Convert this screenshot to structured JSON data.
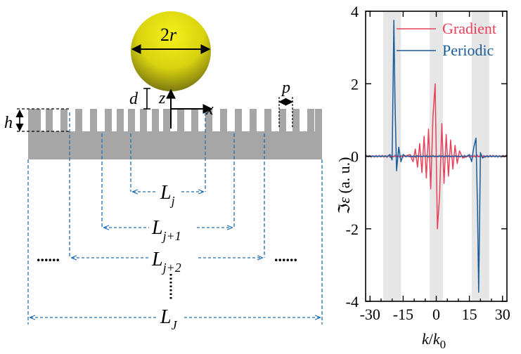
{
  "schematic": {
    "sphere_label_num": "2",
    "sphere_label_var": "r",
    "label_d": "d",
    "label_z": "z",
    "label_x": "x",
    "label_p": "p",
    "label_h": "h",
    "label_Lj": "L",
    "sub_j": "j",
    "sub_j1": "j+1",
    "sub_j2": "j+2",
    "sub_J": "J",
    "ellipsis": "......"
  },
  "colors": {
    "gradient": "#e8415a",
    "periodic": "#1a5c9a",
    "dashed": "#1f6fb4",
    "surface": "#a6a6a6",
    "sphere_top": "#f2ee12",
    "sphere_bottom": "#6e6a10",
    "shade": "#e6e6e6"
  },
  "chart_data": {
    "type": "line",
    "title": "",
    "xlabel_num": "k",
    "xlabel_den": "k",
    "xlabel_sub": "0",
    "ylabel_prefix": "ℑ",
    "ylabel_var": "ε",
    "ylabel_unit": " (a. u.)",
    "xlim": [
      -32,
      32
    ],
    "ylim": [
      -4,
      4
    ],
    "xticks": [
      -30,
      -15,
      0,
      15,
      30
    ],
    "xtick_labels": [
      "-30",
      "-15",
      "0",
      "15",
      "30"
    ],
    "yticks": [
      -4,
      -2,
      0,
      2,
      4
    ],
    "ytick_labels": [
      "-4",
      "-2",
      "0",
      "2",
      "4"
    ],
    "shaded_bands": [
      [
        -24,
        -16
      ],
      [
        -3,
        3
      ],
      [
        16,
        24
      ]
    ],
    "legend_position": "top-right",
    "series": [
      {
        "name": "Gradient",
        "description": "oscillating about 0 around k=0, growing envelope, max 2 near k=-0.5, min -2 near k=0.5",
        "x": [
          -32,
          -14,
          -12,
          -10.5,
          -9.5,
          -8.5,
          -7.5,
          -6.5,
          -5.5,
          -4.5,
          -3.5,
          -2.5,
          -1.5,
          -0.5,
          0.5,
          1.5,
          2.5,
          3.5,
          4.5,
          5.5,
          6.5,
          7.5,
          8.5,
          9.5,
          10.5,
          12,
          14,
          32
        ],
        "y": [
          0,
          0,
          0.05,
          -0.15,
          0.2,
          -0.3,
          0.35,
          -0.45,
          0.55,
          -0.6,
          0.75,
          -0.9,
          1.1,
          2.0,
          -2.0,
          -1.1,
          0.9,
          -0.75,
          0.6,
          -0.55,
          0.45,
          -0.35,
          0.3,
          -0.2,
          0.15,
          -0.05,
          0,
          0
        ]
      },
      {
        "name": "Periodic",
        "description": "mostly ~0 with sharp peak near k=-19 and sharp dip near k=19",
        "x": [
          -32,
          -22,
          -21,
          -20,
          -19.2,
          -18.7,
          -18,
          -17,
          -16,
          -15,
          -14,
          14,
          15,
          16,
          17,
          18,
          18.7,
          19.2,
          20,
          21,
          22,
          32
        ],
        "y": [
          0,
          0,
          0.05,
          -0.1,
          3.75,
          1.5,
          -0.4,
          0.25,
          -0.15,
          0.05,
          0,
          0,
          0.05,
          -0.15,
          0.25,
          0.5,
          -1.5,
          -3.75,
          0.1,
          -0.05,
          0,
          0
        ]
      }
    ]
  }
}
